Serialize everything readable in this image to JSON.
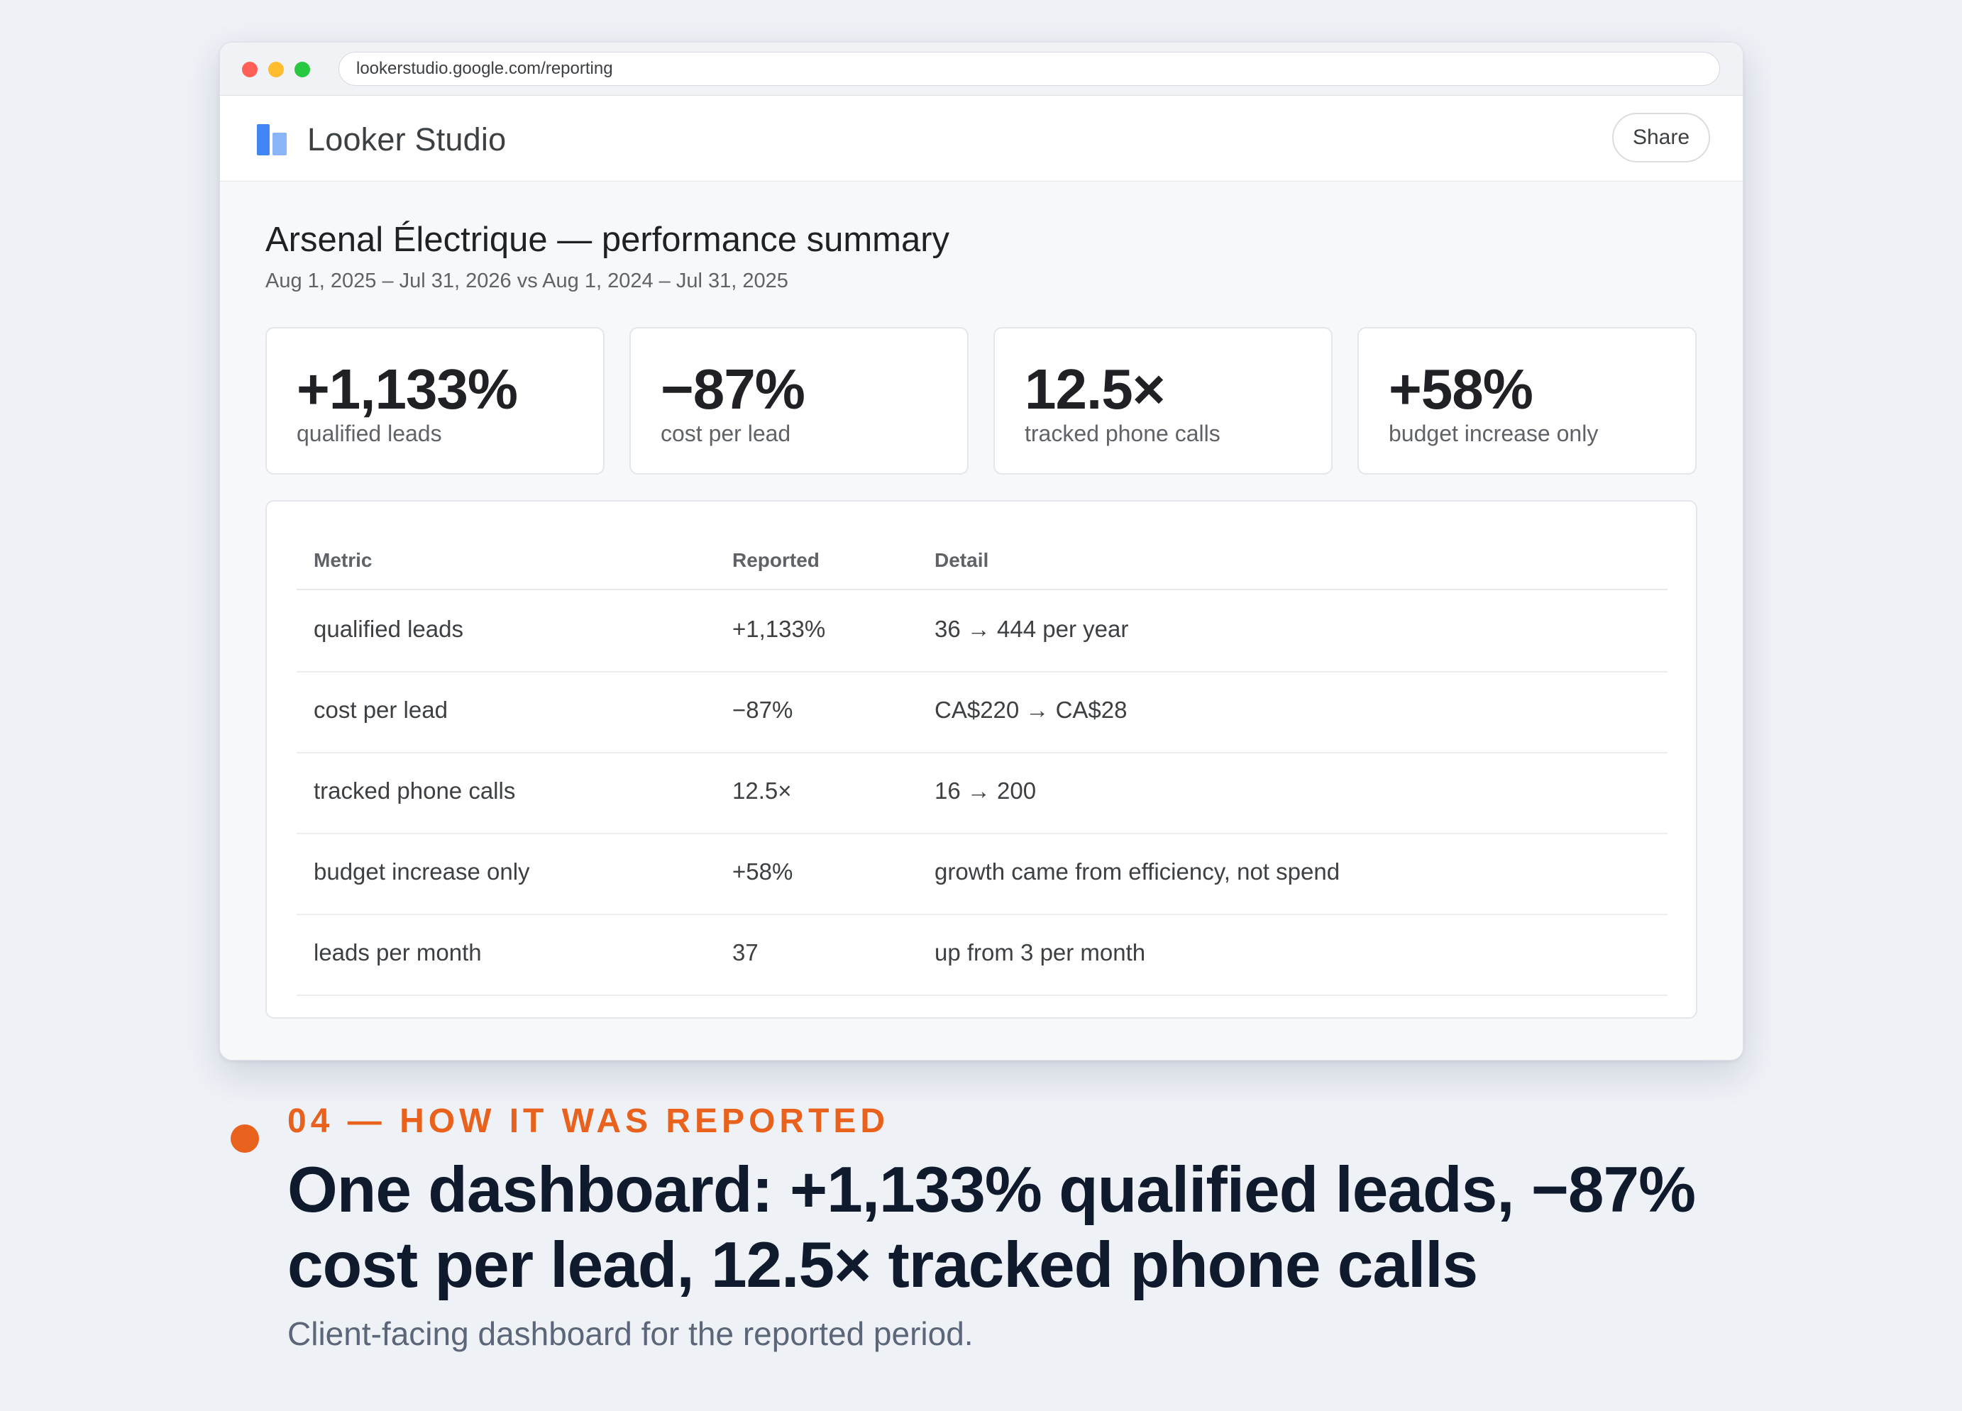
{
  "browser": {
    "url": "lookerstudio.google.com/reporting"
  },
  "app": {
    "name": "Looker Studio",
    "share_label": "Share"
  },
  "report": {
    "title": "Arsenal Électrique — performance summary",
    "date_range": "Aug 1, 2025 – Jul 31, 2026 vs Aug 1, 2024 – Jul 31, 2025"
  },
  "kpis": [
    {
      "value": "+1,133%",
      "label": "qualified leads"
    },
    {
      "value": "−87%",
      "label": "cost per lead"
    },
    {
      "value": "12.5×",
      "label": "tracked phone calls"
    },
    {
      "value": "+58%",
      "label": "budget increase only"
    }
  ],
  "table": {
    "headers": [
      "Metric",
      "Reported",
      "Detail"
    ],
    "rows": [
      {
        "metric": "qualified leads",
        "reported": "+1,133%",
        "detail": "36 → 444 per year"
      },
      {
        "metric": "cost per lead",
        "reported": "−87%",
        "detail": "CA$220 → CA$28"
      },
      {
        "metric": "tracked phone calls",
        "reported": "12.5×",
        "detail": "16 → 200"
      },
      {
        "metric": "budget increase only",
        "reported": "+58%",
        "detail": "growth came from efficiency, not spend"
      },
      {
        "metric": "leads per month",
        "reported": "37",
        "detail": "up from 3 per month"
      }
    ]
  },
  "caption": {
    "eyebrow": "04 — HOW IT WAS REPORTED",
    "headline": "One dashboard: +1,133% qualified leads, −87% cost per lead, 12.5× tracked phone calls",
    "subtitle": "Client-facing dashboard for the reported period."
  },
  "colors": {
    "accent": "#e8621e",
    "looker_blue": "#4285f4",
    "looker_blue_light": "#8ab4f8",
    "headline": "#0f1b2d"
  }
}
